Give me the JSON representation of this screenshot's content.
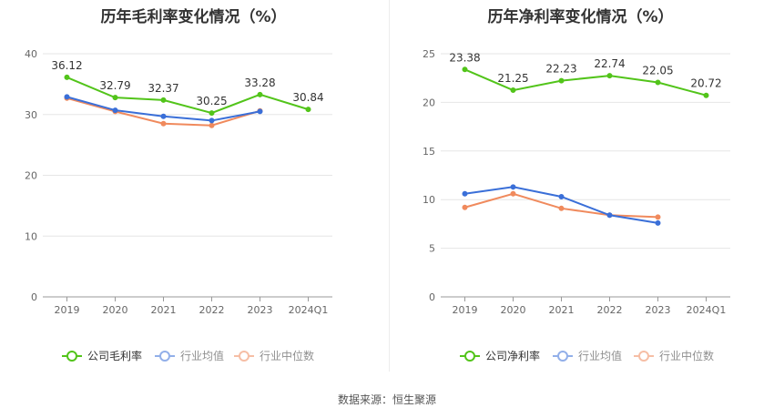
{
  "source_note": "数据来源：恒生聚源",
  "chart_data": [
    {
      "type": "line",
      "title": "历年毛利率变化情况（%）",
      "categories": [
        "2019",
        "2020",
        "2021",
        "2022",
        "2023",
        "2024Q1"
      ],
      "ylim": [
        0,
        40
      ],
      "yticks": [
        0,
        10,
        20,
        30,
        40
      ],
      "grid": true,
      "legend_position": "bottom",
      "series": [
        {
          "name": "公司毛利率",
          "values": [
            36.12,
            32.79,
            32.37,
            30.25,
            33.28,
            30.84
          ],
          "color": "#52c41a",
          "labels": true
        },
        {
          "name": "行业均值",
          "values": [
            32.9,
            30.7,
            29.7,
            29.0,
            30.5,
            null
          ],
          "color": "#3a6fd8",
          "labels": false
        },
        {
          "name": "行业中位数",
          "values": [
            32.7,
            30.5,
            28.5,
            28.2,
            30.6,
            null
          ],
          "color": "#f08a5d",
          "labels": false
        }
      ]
    },
    {
      "type": "line",
      "title": "历年净利率变化情况（%）",
      "categories": [
        "2019",
        "2020",
        "2021",
        "2022",
        "2023",
        "2024Q1"
      ],
      "ylim": [
        0,
        25
      ],
      "yticks": [
        0,
        5,
        10,
        15,
        20,
        25
      ],
      "grid": true,
      "legend_position": "bottom",
      "series": [
        {
          "name": "公司净利率",
          "values": [
            23.38,
            21.25,
            22.23,
            22.74,
            22.05,
            20.72
          ],
          "color": "#52c41a",
          "labels": true
        },
        {
          "name": "行业均值",
          "values": [
            10.6,
            11.3,
            10.3,
            8.4,
            7.6,
            null
          ],
          "color": "#3a6fd8",
          "labels": false
        },
        {
          "name": "行业中位数",
          "values": [
            9.2,
            10.6,
            9.1,
            8.4,
            8.2,
            null
          ],
          "color": "#f08a5d",
          "labels": false
        }
      ]
    }
  ]
}
